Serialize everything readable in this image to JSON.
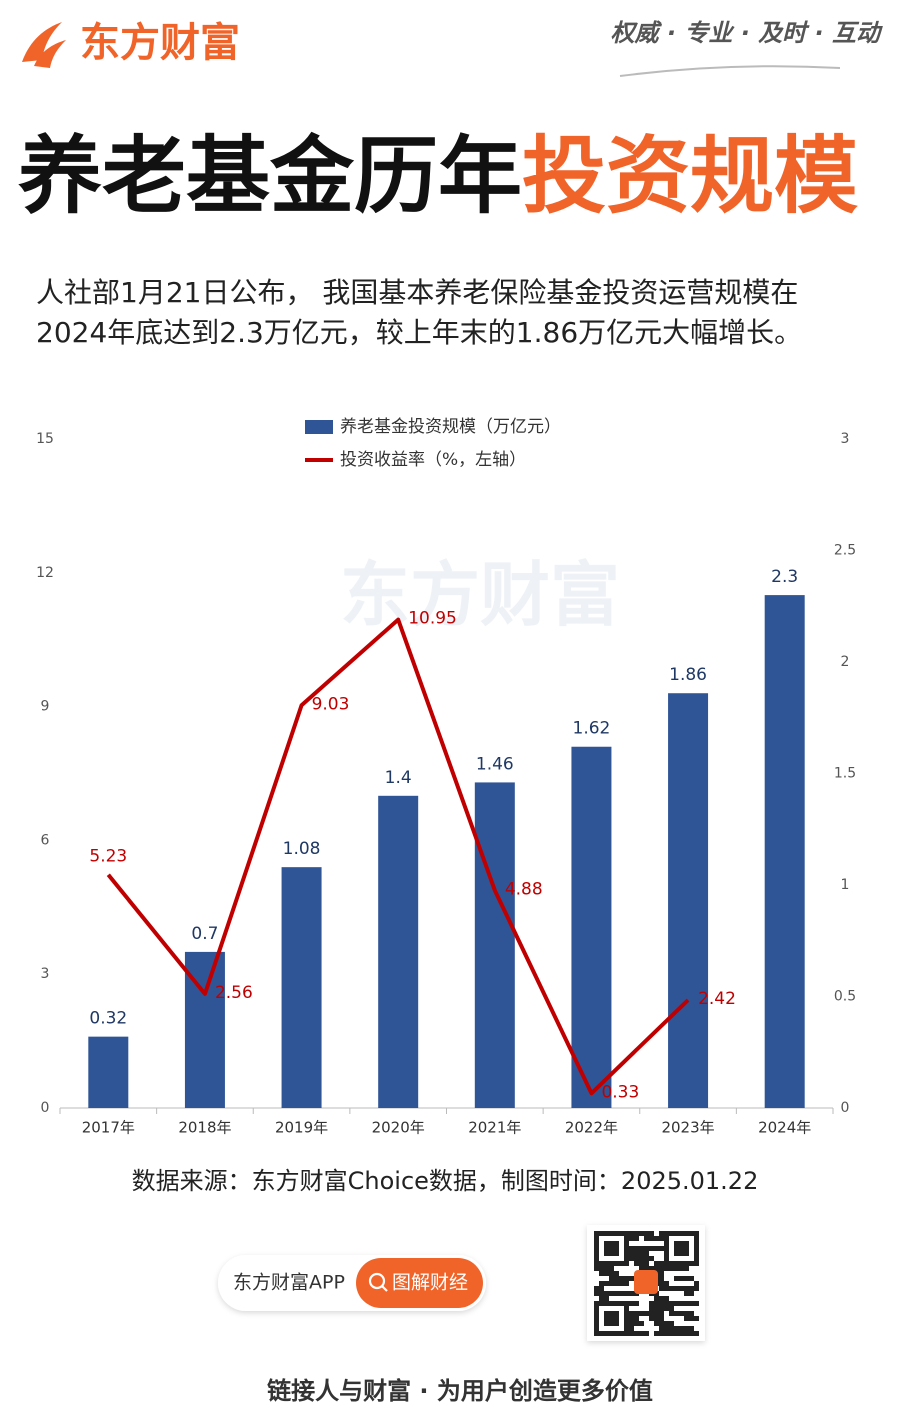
{
  "header": {
    "logo": "东方财富",
    "slogan": "权威 · 专业 · 及时 · 互动"
  },
  "title": {
    "part1": "养老基金历年",
    "part2": "投资规模"
  },
  "intro": [
    "人社部1月21日公布， 我国基本养老保险基金投资运营规模在",
    "2024年底达到2.3万亿元，较上年末的1.86万亿元大幅增长。"
  ],
  "chart_data": {
    "type": "combo",
    "watermark": "东方财富",
    "categories": [
      "2017年",
      "2018年",
      "2019年",
      "2020年",
      "2021年",
      "2022年",
      "2023年",
      "2024年"
    ],
    "series": [
      {
        "name": "养老基金投资规模（万亿元）",
        "type": "bar",
        "color": "#2f5597",
        "axis": "y2",
        "values": [
          0.32,
          0.7,
          1.08,
          1.4,
          1.46,
          1.62,
          1.86,
          2.3
        ]
      },
      {
        "name": "投资收益率（%，左轴）",
        "type": "line",
        "color": "#c00000",
        "values": [
          5.23,
          2.56,
          9.03,
          10.95,
          4.88,
          0.33,
          2.42,
          null
        ]
      }
    ],
    "ylim": [
      0,
      15
    ],
    "yticks": [
      0,
      3,
      6,
      9,
      12,
      15
    ],
    "y2lim": [
      0,
      3
    ],
    "y2ticks": [
      0,
      0.5,
      1,
      1.5,
      2,
      2.5,
      3
    ]
  },
  "source": "数据来源：东方财富Choice数据，制图时间：2025.01.22",
  "footer": {
    "app": "东方财富APP",
    "button": "图解财经",
    "tagline": "链接人与财富 · 为用户创造更多价值"
  }
}
